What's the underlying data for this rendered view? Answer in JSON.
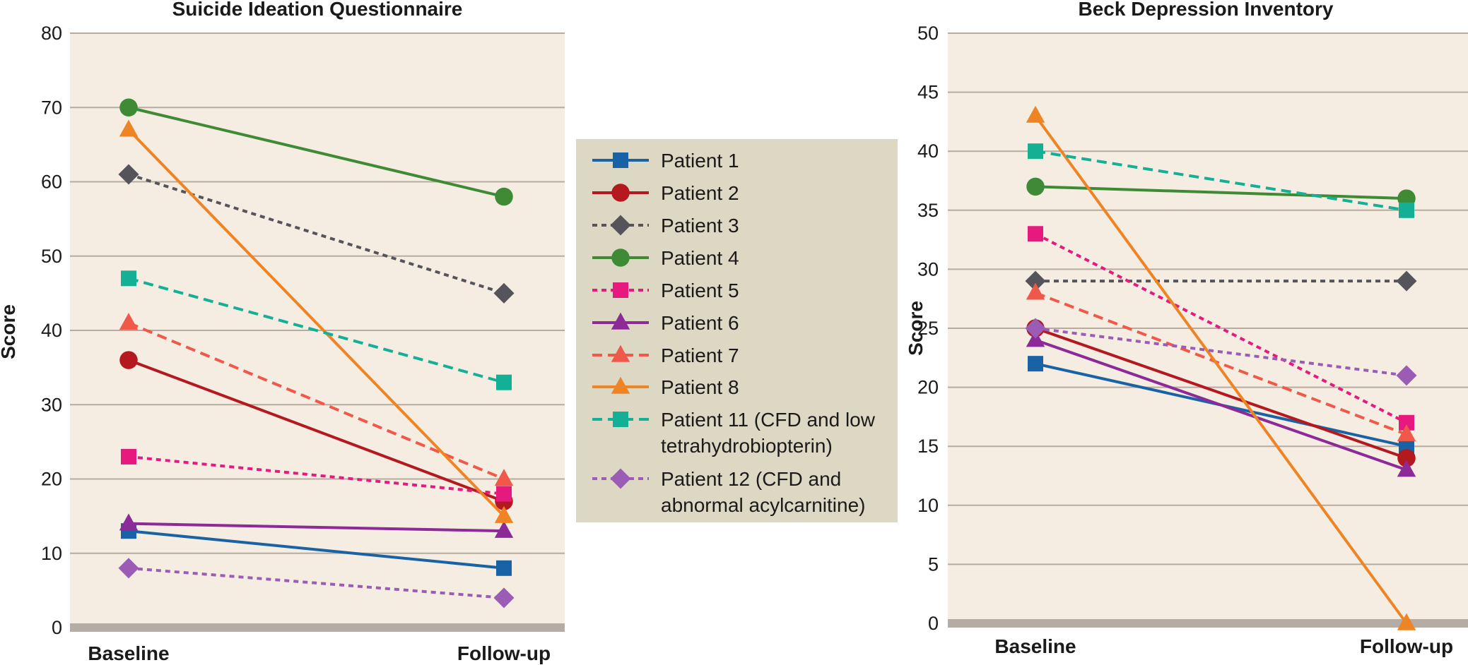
{
  "chart_data": [
    {
      "type": "line",
      "title": "Suicide Ideation Questionnaire",
      "ylabel": "Score",
      "categories": [
        "Baseline",
        "Follow-up"
      ],
      "ylim": [
        0,
        80
      ],
      "yticks": [
        0,
        10,
        20,
        30,
        40,
        50,
        60,
        70,
        80
      ],
      "grid": true,
      "series": [
        {
          "name": "Patient 1",
          "values": [
            13,
            8
          ]
        },
        {
          "name": "Patient 2",
          "values": [
            36,
            17
          ]
        },
        {
          "name": "Patient 3",
          "values": [
            61,
            45
          ]
        },
        {
          "name": "Patient 4",
          "values": [
            70,
            58
          ]
        },
        {
          "name": "Patient 5",
          "values": [
            23,
            18
          ]
        },
        {
          "name": "Patient 6",
          "values": [
            14,
            13
          ]
        },
        {
          "name": "Patient 7",
          "values": [
            41,
            20
          ]
        },
        {
          "name": "Patient 8",
          "values": [
            67,
            15
          ]
        },
        {
          "name": "Patient 11 (CFD and low tetrahydrobiopterin)",
          "values": [
            47,
            33
          ]
        },
        {
          "name": "Patient 12 (CFD and abnormal acylcarnitine)",
          "values": [
            8,
            4
          ]
        }
      ]
    },
    {
      "type": "line",
      "title": "Beck Depression Inventory",
      "ylabel": "Score",
      "categories": [
        "Baseline",
        "Follow-up"
      ],
      "ylim": [
        0,
        50
      ],
      "yticks": [
        0,
        5,
        10,
        15,
        20,
        25,
        30,
        35,
        40,
        45,
        50
      ],
      "grid": true,
      "series": [
        {
          "name": "Patient 1",
          "values": [
            22,
            15
          ]
        },
        {
          "name": "Patient 2",
          "values": [
            25,
            14
          ]
        },
        {
          "name": "Patient 3",
          "values": [
            29,
            29
          ]
        },
        {
          "name": "Patient 4",
          "values": [
            37,
            36
          ]
        },
        {
          "name": "Patient 5",
          "values": [
            33,
            17
          ]
        },
        {
          "name": "Patient 6",
          "values": [
            24,
            13
          ]
        },
        {
          "name": "Patient 7",
          "values": [
            28,
            16
          ]
        },
        {
          "name": "Patient 8",
          "values": [
            43,
            0
          ]
        },
        {
          "name": "Patient 11 (CFD and low tetrahydrobiopterin)",
          "values": [
            40,
            35
          ]
        },
        {
          "name": "Patient 12 (CFD and abnormal acylcarnitine)",
          "values": [
            25,
            21
          ]
        }
      ]
    }
  ],
  "legend": {
    "placement": "center",
    "items": [
      {
        "label_lines": [
          "Patient 1"
        ],
        "color": "#1a62a6",
        "dash": "solid",
        "marker": "square"
      },
      {
        "label_lines": [
          "Patient 2"
        ],
        "color": "#b3191e",
        "dash": "solid",
        "marker": "circle"
      },
      {
        "label_lines": [
          "Patient 3"
        ],
        "color": "#54545a",
        "dash": "dotted",
        "marker": "diamond"
      },
      {
        "label_lines": [
          "Patient 4"
        ],
        "color": "#3f8a35",
        "dash": "solid",
        "marker": "circle"
      },
      {
        "label_lines": [
          "Patient 5"
        ],
        "color": "#e6197f",
        "dash": "dotted",
        "marker": "square"
      },
      {
        "label_lines": [
          "Patient 6"
        ],
        "color": "#8c2a98",
        "dash": "solid",
        "marker": "triangle"
      },
      {
        "label_lines": [
          "Patient 7"
        ],
        "color": "#f0584a",
        "dash": "dashed",
        "marker": "triangle"
      },
      {
        "label_lines": [
          "Patient 8"
        ],
        "color": "#ef8424",
        "dash": "solid",
        "marker": "triangle"
      },
      {
        "label_lines": [
          "Patient 11 (CFD and low",
          "tetrahydrobiopterin)"
        ],
        "color": "#14b096",
        "dash": "dashed",
        "marker": "square"
      },
      {
        "label_lines": [
          "Patient 12 (CFD and",
          "abnormal acylcarnitine)"
        ],
        "color": "#9a5cb4",
        "dash": "dotted",
        "marker": "diamond"
      }
    ]
  }
}
